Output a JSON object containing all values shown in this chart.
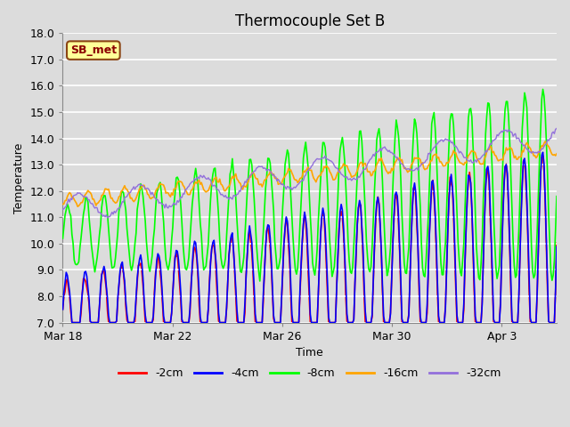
{
  "title": "Thermocouple Set B",
  "xlabel": "Time",
  "ylabel": "Temperature",
  "ylim": [
    7.0,
    18.0
  ],
  "yticks": [
    7.0,
    8.0,
    9.0,
    10.0,
    11.0,
    12.0,
    13.0,
    14.0,
    15.0,
    16.0,
    17.0,
    18.0
  ],
  "xtick_labels": [
    "Mar 18",
    "Mar 22",
    "Mar 26",
    "Mar 30",
    "Apr 3"
  ],
  "xtick_positions": [
    0,
    4,
    8,
    12,
    16
  ],
  "annotation_text": "SB_met",
  "series_colors": [
    "red",
    "blue",
    "lime",
    "orange",
    "mediumpurple"
  ],
  "series_labels": [
    "-2cm",
    "-4cm",
    "-8cm",
    "-16cm",
    "-32cm"
  ],
  "bg_color": "#dcdcdc",
  "fig_color": "#dcdcdc",
  "title_fontsize": 12,
  "axis_fontsize": 9,
  "legend_fontsize": 9,
  "n_days": 18,
  "n_per_day": 24
}
